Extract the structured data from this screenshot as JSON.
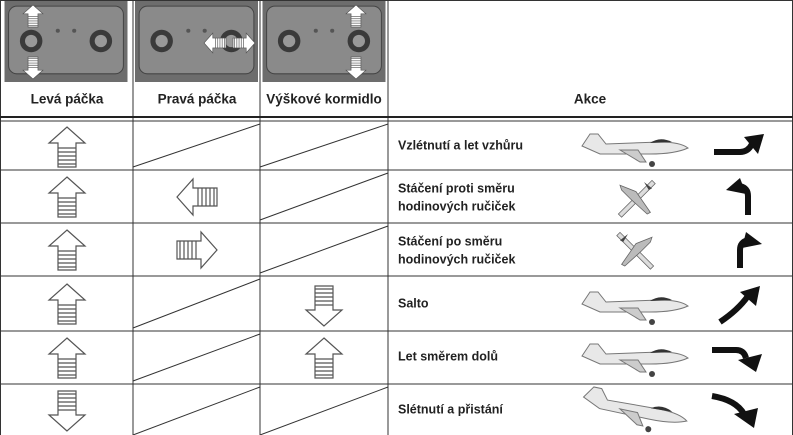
{
  "header": {
    "columns": [
      "Levá páčka",
      "Pravá páčka",
      "Výškové kormidlo",
      "Akce"
    ]
  },
  "rows": [
    {
      "action": [
        "Vzlétnutí a let vzhůru"
      ]
    },
    {
      "action": [
        "Stáčení proti směru",
        "hodinových ručiček"
      ]
    },
    {
      "action": [
        "Stáčení po směru",
        "hodinových ručiček"
      ]
    },
    {
      "action": [
        "Salto"
      ]
    },
    {
      "action": [
        "Let směrem dolů"
      ]
    },
    {
      "action": [
        "Slétnutí a přistání"
      ]
    }
  ]
}
